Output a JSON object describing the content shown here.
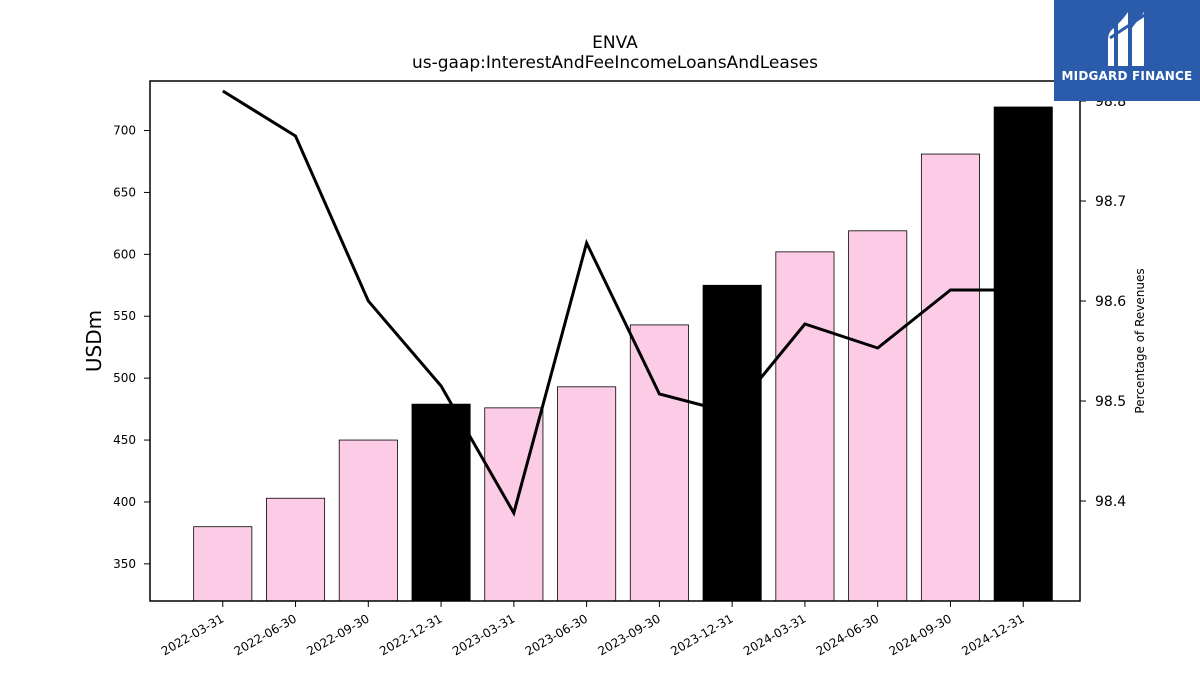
{
  "chart_data": {
    "type": "bar+line",
    "title": "ENVA",
    "subtitle": "us-gaap:InterestAndFeeIncomeLoansAndLeases",
    "ylabel": "USDm",
    "y2label": "Percentage of Revenues",
    "categories": [
      "2022-03-31",
      "2022-06-30",
      "2022-09-30",
      "2022-12-31",
      "2023-03-31",
      "2023-06-30",
      "2023-09-30",
      "2023-12-31",
      "2024-03-31",
      "2024-06-30",
      "2024-09-30",
      "2024-12-31"
    ],
    "bars": [
      380,
      403,
      450,
      479,
      476,
      493,
      543,
      575,
      602,
      619,
      681,
      719
    ],
    "bar_colors": [
      "#fccbe5",
      "#fccbe5",
      "#fccbe5",
      "#000000",
      "#fccbe5",
      "#fccbe5",
      "#fccbe5",
      "#000000",
      "#fccbe5",
      "#fccbe5",
      "#fccbe5",
      "#000000"
    ],
    "line": [
      98.81,
      98.765,
      98.6,
      98.515,
      98.388,
      98.658,
      98.507,
      98.488,
      98.577,
      98.553,
      98.611,
      98.611
    ],
    "line_color": "#000000",
    "ylim": [
      320,
      740
    ],
    "y2lim": [
      98.3,
      98.82
    ],
    "yticks": [
      350,
      400,
      450,
      500,
      550,
      600,
      650,
      700
    ],
    "y2ticks": [
      98.4,
      98.5,
      98.6,
      98.7,
      98.8
    ],
    "grid": false,
    "legend": "none"
  },
  "logo": {
    "text": "MIDGARD FINANCE",
    "icon": "midgard-logo-icon",
    "background": "#2b5cab"
  }
}
